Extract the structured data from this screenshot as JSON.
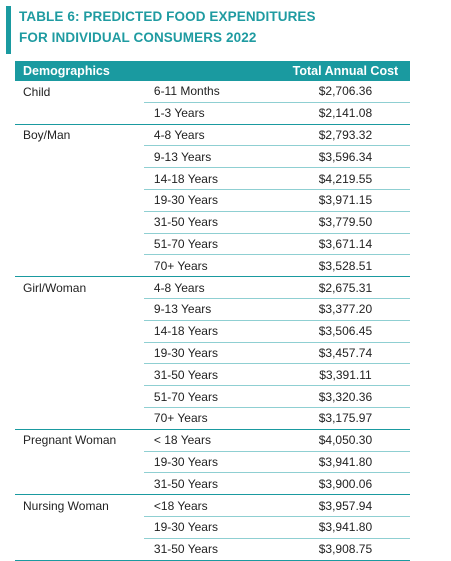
{
  "title": {
    "line1": "TABLE 6: PREDICTED FOOD EXPENDITURES",
    "line2": "FOR INDIVIDUAL CONSUMERS 2022"
  },
  "header": {
    "demographics": "Demographics",
    "age": "",
    "cost": "Total Annual Cost"
  },
  "rows": [
    {
      "group": "Child",
      "age": "6-11 Months",
      "cost": "$2,706.36"
    },
    {
      "group": "",
      "age": "1-3 Years",
      "cost": "$2,141.08"
    },
    {
      "group": "Boy/Man",
      "age": "4-8 Years",
      "cost": "$2,793.32"
    },
    {
      "group": "",
      "age": "9-13 Years",
      "cost": "$3,596.34"
    },
    {
      "group": "",
      "age": "14-18 Years",
      "cost": "$4,219.55"
    },
    {
      "group": "",
      "age": "19-30 Years",
      "cost": "$3,971.15"
    },
    {
      "group": "",
      "age": "31-50 Years",
      "cost": "$3,779.50"
    },
    {
      "group": "",
      "age": "51-70 Years",
      "cost": "$3,671.14"
    },
    {
      "group": "",
      "age": "70+ Years",
      "cost": "$3,528.51"
    },
    {
      "group": "Girl/Woman",
      "age": "4-8 Years",
      "cost": "$2,675.31"
    },
    {
      "group": "",
      "age": "9-13 Years",
      "cost": "$3,377.20"
    },
    {
      "group": "",
      "age": "14-18 Years",
      "cost": "$3,506.45"
    },
    {
      "group": "",
      "age": "19-30 Years",
      "cost": "$3,457.74"
    },
    {
      "group": "",
      "age": "31-50 Years",
      "cost": "$3,391.11"
    },
    {
      "group": "",
      "age": "51-70 Years",
      "cost": "$3,320.36"
    },
    {
      "group": "",
      "age": "70+ Years",
      "cost": "$3,175.97"
    },
    {
      "group": "Pregnant Woman",
      "age": "< 18 Years",
      "cost": "$4,050.30"
    },
    {
      "group": "",
      "age": "19-30 Years",
      "cost": "$3,941.80"
    },
    {
      "group": "",
      "age": "31-50 Years",
      "cost": "$3,900.06"
    },
    {
      "group": "Nursing Woman",
      "age": "<18 Years",
      "cost": "$3,957.94"
    },
    {
      "group": "",
      "age": "19-30 Years",
      "cost": "$3,941.80"
    },
    {
      "group": "",
      "age": "31-50 Years",
      "cost": "$3,908.75"
    }
  ]
}
